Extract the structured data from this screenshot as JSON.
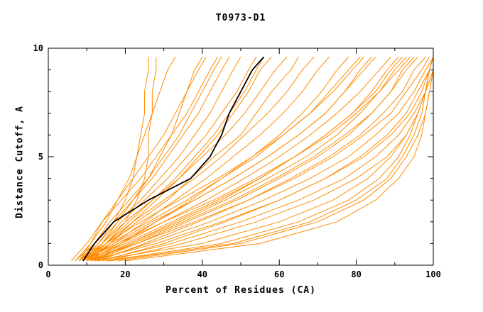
{
  "chart_data": {
    "type": "line",
    "title": "T0973-D1",
    "xlabel": "Percent of Residues (CA)",
    "ylabel": "Distance Cutoff, A",
    "xlim": [
      0,
      100
    ],
    "ylim": [
      0,
      10
    ],
    "xticks_major": [
      0,
      20,
      40,
      60,
      80,
      100
    ],
    "xticks_minor": [
      10,
      30,
      50,
      70,
      90
    ],
    "yticks_major": [
      0,
      5,
      10
    ],
    "yticks_minor": [
      1,
      2,
      3,
      4,
      6,
      7,
      8,
      9
    ],
    "grid": false,
    "legend": "none",
    "colors": {
      "predictions": "#ff8c00",
      "reference": "#000000",
      "frame": "#000000"
    },
    "y_grid": [
      0.2,
      1,
      2,
      3,
      4,
      5,
      6,
      7,
      8,
      9,
      9.6
    ],
    "orange_series": [
      [
        8,
        13,
        17,
        20,
        22,
        23,
        24,
        25,
        25,
        26,
        26
      ],
      [
        9,
        15,
        20,
        23,
        25,
        26,
        26,
        27,
        27,
        28,
        28
      ],
      [
        7,
        11,
        15,
        18,
        21,
        23,
        25,
        27,
        29,
        31,
        33
      ],
      [
        10,
        14,
        18,
        22,
        26,
        29,
        32,
        34,
        36,
        38,
        40
      ],
      [
        8,
        12,
        16,
        21,
        26,
        30,
        34,
        37,
        40,
        43,
        45
      ],
      [
        9,
        13,
        18,
        24,
        29,
        34,
        38,
        42,
        45,
        48,
        50
      ],
      [
        10,
        15,
        21,
        27,
        33,
        38,
        43,
        47,
        51,
        54,
        56
      ],
      [
        8,
        14,
        20,
        27,
        34,
        40,
        46,
        51,
        55,
        59,
        62
      ],
      [
        11,
        16,
        23,
        31,
        37,
        43,
        50,
        54,
        58,
        63,
        65
      ],
      [
        9,
        15,
        22,
        30,
        38,
        45,
        51,
        57,
        62,
        66,
        69
      ],
      [
        10,
        17,
        25,
        33,
        41,
        48,
        55,
        61,
        66,
        70,
        73
      ],
      [
        12,
        19,
        28,
        37,
        45,
        53,
        60,
        66,
        71,
        75,
        78
      ],
      [
        9,
        16,
        26,
        36,
        45,
        54,
        61,
        68,
        73,
        78,
        81
      ],
      [
        11,
        18,
        28,
        38,
        48,
        57,
        65,
        72,
        77,
        82,
        85
      ],
      [
        10,
        19,
        30,
        41,
        51,
        60,
        68,
        75,
        81,
        86,
        89
      ],
      [
        12,
        21,
        33,
        45,
        55,
        64,
        72,
        79,
        85,
        89,
        92
      ],
      [
        9,
        18,
        30,
        43,
        54,
        64,
        73,
        80,
        86,
        91,
        94
      ],
      [
        11,
        22,
        35,
        48,
        59,
        69,
        77,
        84,
        89,
        93,
        96
      ],
      [
        13,
        25,
        39,
        52,
        63,
        73,
        81,
        87,
        92,
        95,
        98
      ],
      [
        10,
        23,
        38,
        52,
        64,
        74,
        82,
        89,
        93,
        97,
        99
      ],
      [
        12,
        26,
        42,
        56,
        68,
        78,
        85,
        91,
        95,
        98,
        100
      ],
      [
        14,
        30,
        46,
        60,
        72,
        81,
        88,
        93,
        96,
        99,
        100
      ],
      [
        11,
        28,
        45,
        60,
        72,
        82,
        89,
        94,
        97,
        99,
        100
      ],
      [
        13,
        32,
        50,
        65,
        77,
        85,
        91,
        95,
        98,
        100,
        100
      ],
      [
        15,
        35,
        54,
        69,
        80,
        88,
        93,
        96,
        98,
        100,
        100
      ],
      [
        15,
        45,
        65,
        78,
        86,
        91,
        94,
        96,
        98,
        99,
        100
      ],
      [
        18,
        50,
        70,
        82,
        89,
        93,
        96,
        98,
        99,
        100,
        100
      ],
      [
        20,
        55,
        75,
        85,
        91,
        95,
        97,
        98,
        99,
        100,
        100
      ],
      [
        12,
        40,
        60,
        74,
        83,
        89,
        93,
        96,
        98,
        99,
        100
      ],
      [
        16,
        48,
        68,
        80,
        88,
        92,
        95,
        97,
        98,
        99,
        100
      ],
      [
        10,
        20,
        32,
        44,
        55,
        64,
        72,
        79,
        84,
        88,
        91
      ],
      [
        11,
        21,
        34,
        46,
        57,
        67,
        75,
        81,
        86,
        90,
        93
      ],
      [
        9,
        17,
        27,
        38,
        48,
        57,
        65,
        72,
        77,
        81,
        84
      ],
      [
        12,
        23,
        36,
        49,
        60,
        70,
        78,
        84,
        89,
        92,
        95
      ],
      [
        8,
        15,
        24,
        34,
        44,
        53,
        61,
        68,
        74,
        79,
        82
      ],
      [
        7,
        12,
        17,
        22,
        27,
        31,
        35,
        39,
        42,
        45,
        47
      ],
      [
        8,
        11,
        14,
        18,
        22,
        26,
        30,
        33,
        36,
        39,
        41
      ],
      [
        10,
        16,
        22,
        28,
        34,
        39,
        44,
        48,
        52,
        55,
        58
      ],
      [
        9,
        14,
        19,
        25,
        31,
        36,
        41,
        45,
        49,
        52,
        54
      ],
      [
        6,
        10,
        14,
        19,
        24,
        28,
        32,
        36,
        39,
        42,
        44
      ]
    ],
    "black_series": [
      9,
      12,
      17,
      26,
      37,
      42,
      45,
      47,
      50,
      53,
      56
    ]
  }
}
